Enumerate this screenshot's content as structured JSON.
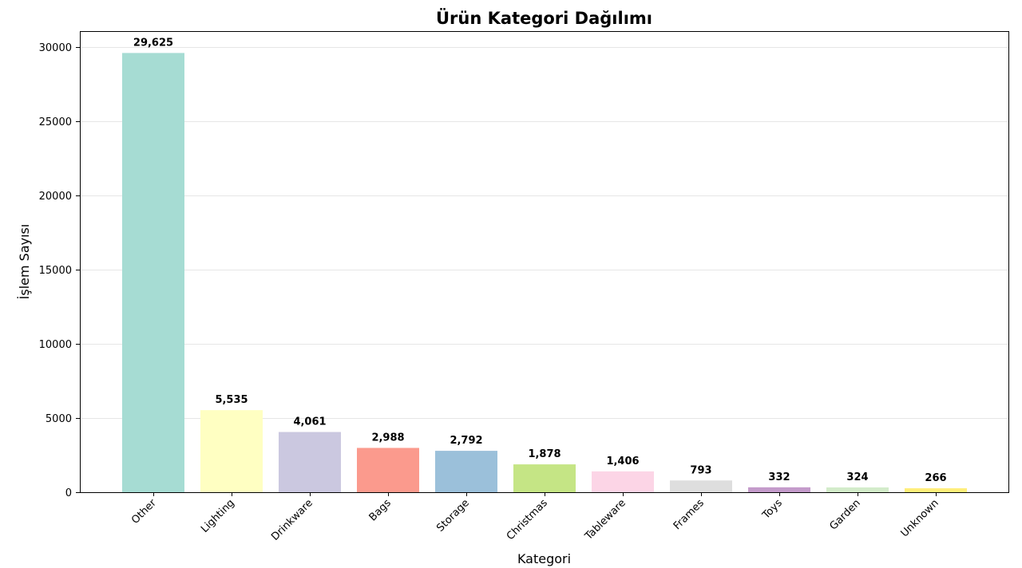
{
  "chart_data": {
    "type": "bar",
    "title": "Ürün Kategori Dağılımı",
    "xlabel": "Kategori",
    "ylabel": "İşlem Sayısı",
    "categories": [
      "Other",
      "Lighting",
      "Drinkware",
      "Bags",
      "Storage",
      "Christmas",
      "Tableware",
      "Frames",
      "Toys",
      "Garden",
      "Unknown"
    ],
    "values": [
      29625,
      5535,
      4061,
      2988,
      2792,
      1878,
      1406,
      793,
      332,
      324,
      266
    ],
    "data_labels": [
      "29,625",
      "5,535",
      "4,061",
      "2,988",
      "2,792",
      "1,878",
      "1,406",
      "793",
      "332",
      "324",
      "266"
    ],
    "colors": [
      "#a6dcd3",
      "#ffffc2",
      "#cbc8e0",
      "#fb9a8d",
      "#9bc0da",
      "#c5e585",
      "#fcd5e6",
      "#dedede",
      "#c49bcb",
      "#d3ecca",
      "#ffee7a"
    ],
    "ylim": [
      0,
      31100
    ],
    "yticks": [
      0,
      5000,
      10000,
      15000,
      20000,
      25000,
      30000
    ],
    "ytick_labels": [
      "0",
      "5000",
      "10000",
      "15000",
      "20000",
      "25000",
      "30000"
    ],
    "grid": "horizontal",
    "legend": "none"
  }
}
